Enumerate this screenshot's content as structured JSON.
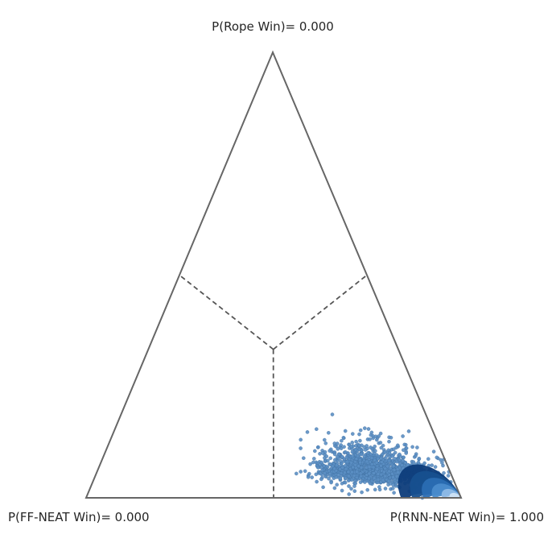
{
  "chart_data": {
    "type": "scatter",
    "subtype": "ternary-simplex",
    "vertices": [
      {
        "name": "P(Rope Win)",
        "label": "P(Rope Win)= 0.000",
        "value": 0.0
      },
      {
        "name": "P(FF-NEAT Win)",
        "label": "P(FF-NEAT Win)= 0.000",
        "value": 0.0
      },
      {
        "name": "P(RNN-NEAT Win)",
        "label": "P(RNN-NEAT Win)= 1.000",
        "value": 1.0
      }
    ],
    "region_dividers": "dashed lines from centroid to edge midpoints",
    "point_cloud": {
      "center": {
        "rope": 0.06,
        "ff": 0.2,
        "rnn": 0.74
      },
      "spread": {
        "rope": 0.03,
        "ff": 0.07
      },
      "extent": {
        "rope_max": 0.3,
        "ff_max": 0.42
      },
      "colors": {
        "scatter": "#5b8fc4",
        "scatter_edge": "#3f6f9f",
        "density_dark": "#0d3c7a",
        "density_mid": "#2a6db3",
        "density_light": "#cfe3f5"
      }
    },
    "edge_color": "#666666",
    "divider_color": "#555555"
  }
}
